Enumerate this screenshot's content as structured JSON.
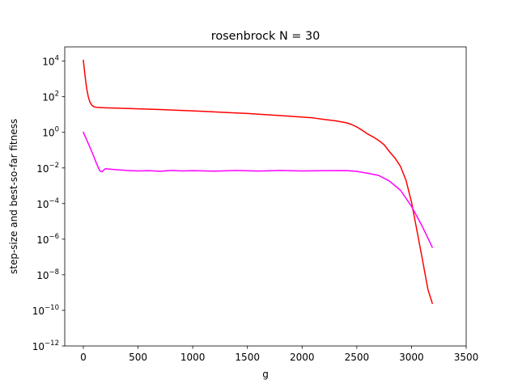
{
  "chart_data": {
    "type": "line",
    "title": "rosenbrock N = 30",
    "xlabel": "g",
    "ylabel": "step-size and best-so-far fitness",
    "xscale": "linear",
    "yscale": "log",
    "xlim": [
      -170,
      3500
    ],
    "ylim_log10": [
      -12,
      4.8
    ],
    "grid": false,
    "x_ticks": [
      0,
      500,
      1000,
      1500,
      2000,
      2500,
      3000,
      3500
    ],
    "y_ticks": [
      {
        "base": "10",
        "exp": "−12",
        "log10": -12
      },
      {
        "base": "10",
        "exp": "−10",
        "log10": -10
      },
      {
        "base": "10",
        "exp": "−8",
        "log10": -8
      },
      {
        "base": "10",
        "exp": "−6",
        "log10": -6
      },
      {
        "base": "10",
        "exp": "−4",
        "log10": -4
      },
      {
        "base": "10",
        "exp": "−2",
        "log10": -2
      },
      {
        "base": "10",
        "exp": "0",
        "log10": 0
      },
      {
        "base": "10",
        "exp": "2",
        "log10": 2
      },
      {
        "base": "10",
        "exp": "4",
        "log10": 4
      }
    ],
    "series": [
      {
        "color": "#ff0000",
        "x": [
          0,
          10,
          20,
          30,
          45,
          60,
          80,
          100,
          130,
          200,
          300,
          500,
          700,
          900,
          1100,
          1300,
          1500,
          1700,
          1900,
          2100,
          2200,
          2300,
          2400,
          2450,
          2500,
          2550,
          2600,
          2650,
          2700,
          2750,
          2800,
          2850,
          2900,
          2950,
          3000,
          3050,
          3100,
          3150,
          3190
        ],
        "y": [
          11000,
          3000,
          900,
          300,
          100,
          50,
          32,
          27,
          25,
          24,
          23,
          21,
          19,
          17,
          15,
          13,
          11.5,
          9.5,
          8,
          6.5,
          5.3,
          4.5,
          3.5,
          2.8,
          2,
          1.3,
          0.8,
          0.55,
          0.35,
          0.2,
          0.08,
          0.035,
          0.012,
          0.002,
          0.00012,
          3e-06,
          7e-08,
          1.5e-09,
          2.5e-10
        ]
      },
      {
        "color": "#ff00ff",
        "x": [
          0,
          40,
          80,
          120,
          150,
          170,
          200,
          250,
          300,
          400,
          500,
          600,
          700,
          800,
          900,
          1000,
          1200,
          1400,
          1600,
          1800,
          2000,
          2200,
          2400,
          2500,
          2600,
          2700,
          2800,
          2900,
          3000,
          3100,
          3190
        ],
        "y": [
          1,
          0.28,
          0.075,
          0.018,
          0.007,
          0.006,
          0.009,
          0.0085,
          0.008,
          0.0072,
          0.0068,
          0.007,
          0.0065,
          0.0072,
          0.0068,
          0.007,
          0.0066,
          0.0072,
          0.0067,
          0.0072,
          0.0068,
          0.007,
          0.0071,
          0.0064,
          0.005,
          0.0038,
          0.0018,
          0.00055,
          7e-05,
          5e-06,
          3.5e-07
        ]
      }
    ]
  }
}
